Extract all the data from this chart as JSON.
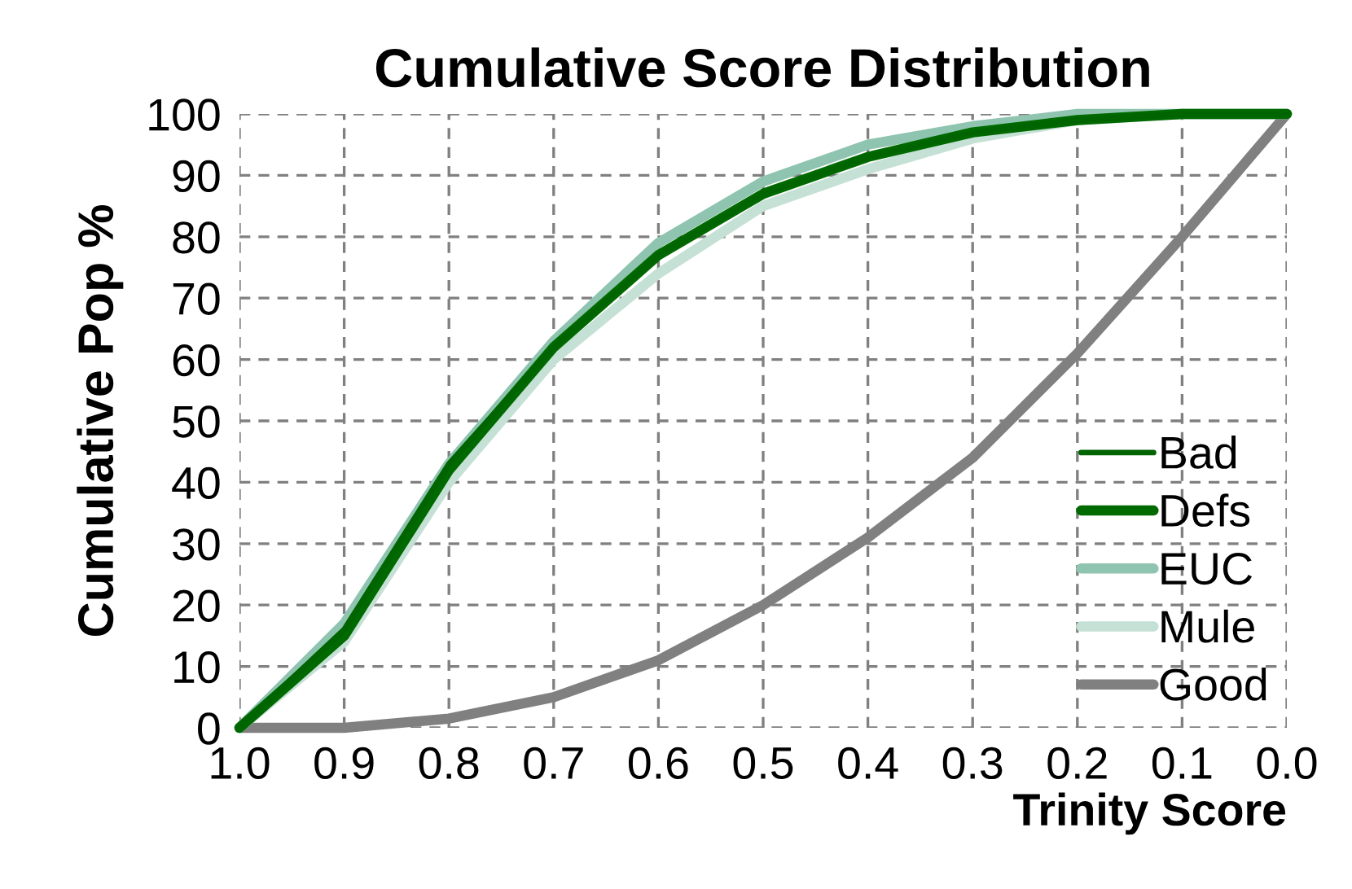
{
  "chart_data": {
    "type": "line",
    "title": "Cumulative Score Distribution",
    "xlabel": "Trinity Score",
    "ylabel": "Cumulative Pop %",
    "x": [
      1.0,
      0.9,
      0.8,
      0.7,
      0.6,
      0.5,
      0.4,
      0.3,
      0.2,
      0.1,
      0.0
    ],
    "series": [
      {
        "name": "Bad",
        "color": "#006400",
        "values": [
          0,
          16,
          43,
          62,
          77,
          87,
          93,
          97,
          99,
          100,
          100
        ]
      },
      {
        "name": "Defs",
        "color": "#006a00",
        "values": [
          0,
          15,
          42,
          62,
          77,
          87,
          93,
          97,
          99,
          100,
          100
        ]
      },
      {
        "name": "EUC",
        "color": "#8fc4b0",
        "values": [
          0,
          17,
          43,
          63,
          79,
          89,
          95,
          98,
          100,
          100,
          100
        ]
      },
      {
        "name": "Mule",
        "color": "#c5e0d5",
        "values": [
          0,
          14,
          40,
          60,
          74,
          85,
          91,
          96,
          99,
          100,
          100
        ]
      },
      {
        "name": "Good",
        "color": "#808080",
        "values": [
          0,
          0,
          1.5,
          5,
          11,
          20,
          31,
          44,
          61,
          80,
          100
        ]
      }
    ],
    "xlim": [
      1.0,
      0.0
    ],
    "xticks": [
      {
        "value": 1.0,
        "label": "1.0"
      },
      {
        "value": 0.9,
        "label": "0.9"
      },
      {
        "value": 0.8,
        "label": "0.8"
      },
      {
        "value": 0.7,
        "label": "0.7"
      },
      {
        "value": 0.6,
        "label": "0.6"
      },
      {
        "value": 0.5,
        "label": "0.5"
      },
      {
        "value": 0.4,
        "label": "0.4"
      },
      {
        "value": 0.3,
        "label": "0.3"
      },
      {
        "value": 0.2,
        "label": "0.2"
      },
      {
        "value": 0.1,
        "label": "0.1"
      },
      {
        "value": 0.0,
        "label": "0.0"
      }
    ],
    "ylim": [
      0,
      100
    ],
    "yticks": [
      0,
      10,
      20,
      30,
      40,
      50,
      60,
      70,
      80,
      90,
      100
    ],
    "grid": true,
    "legend": "bottom right",
    "marker": "none",
    "line_style": "solid"
  }
}
